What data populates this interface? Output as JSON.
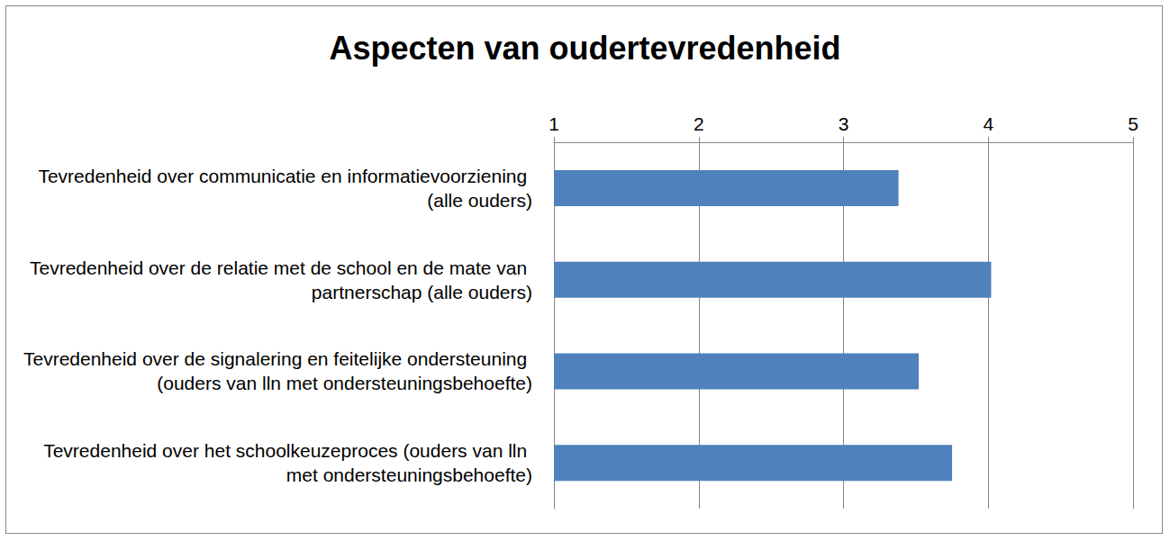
{
  "chart_data": {
    "type": "bar",
    "title": "Aspecten van oudertevredenheid",
    "orientation": "horizontal",
    "categories": [
      "Tevredenheid over communicatie en informatievoorziening (alle ouders)",
      "Tevredenheid over de relatie met de school en de mate van partnerschap (alle ouders)",
      "Tevredenheid over de signalering en feitelijke ondersteuning (ouders van lln met ondersteuningsbehoefte)",
      "Tevredenheid over het schoolkeuzeproces (ouders van lln met ondersteuningsbehoefte)"
    ],
    "values": [
      3.38,
      4.02,
      3.52,
      3.75
    ],
    "color": "#4f81bd",
    "xlim": [
      1,
      5
    ],
    "xticks": [
      1,
      2,
      3,
      4,
      5
    ],
    "grid": true
  }
}
